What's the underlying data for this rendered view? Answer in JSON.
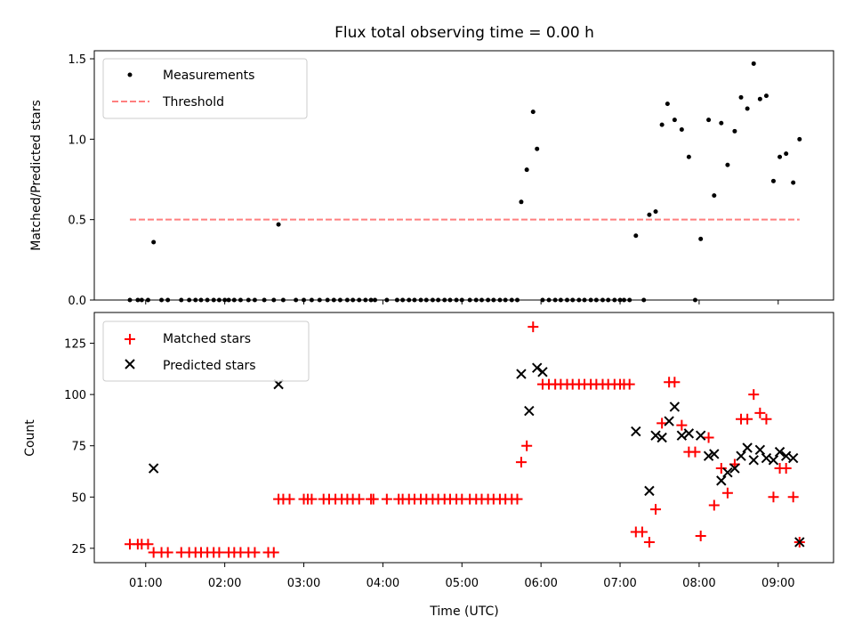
{
  "chart_data": [
    {
      "type": "scatter",
      "title": "Flux total observing time = 0.00 h",
      "xlabel": "",
      "ylabel": "Matched/Predicted stars",
      "xlim": [
        0.35,
        9.7
      ],
      "ylim": [
        0,
        1.55
      ],
      "yticks": [
        0.0,
        0.5,
        1.0,
        1.5
      ],
      "ytick_labels": [
        "0.0",
        "0.5",
        "1.0",
        "1.5"
      ],
      "legend": {
        "placement": "top-left",
        "entries": [
          "Measurements",
          "Threshold"
        ]
      },
      "threshold": {
        "name": "Threshold",
        "y": 0.5,
        "x_range": [
          0.8,
          9.27
        ],
        "color": "#ff7f7f"
      },
      "series": [
        {
          "name": "Measurements",
          "color": "#000000",
          "marker": "dot",
          "x": [
            0.8,
            0.9,
            0.95,
            1.03,
            1.1,
            1.2,
            1.28,
            1.45,
            1.55,
            1.63,
            1.7,
            1.78,
            1.86,
            1.93,
            2.0,
            2.05,
            2.12,
            2.2,
            2.3,
            2.38,
            2.5,
            2.62,
            2.68,
            2.74,
            2.9,
            3.0,
            3.1,
            3.2,
            3.3,
            3.38,
            3.46,
            3.55,
            3.62,
            3.7,
            3.78,
            3.85,
            3.9,
            4.05,
            4.18,
            4.25,
            4.33,
            4.4,
            4.48,
            4.55,
            4.63,
            4.7,
            4.78,
            4.85,
            4.93,
            5.0,
            5.1,
            5.18,
            5.25,
            5.33,
            5.4,
            5.48,
            5.55,
            5.63,
            5.7,
            5.75,
            5.82,
            5.9,
            5.95,
            6.02,
            6.1,
            6.18,
            6.25,
            6.33,
            6.4,
            6.48,
            6.55,
            6.63,
            6.7,
            6.78,
            6.85,
            6.93,
            7.0,
            7.05,
            7.12,
            7.2,
            7.3,
            7.37,
            7.45,
            7.53,
            7.6,
            7.69,
            7.78,
            7.87,
            7.95,
            8.02,
            8.12,
            8.19,
            8.28,
            8.36,
            8.45,
            8.53,
            8.61,
            8.69,
            8.77,
            8.85,
            8.94,
            9.02,
            9.1,
            9.19,
            9.27
          ],
          "y": [
            0,
            0,
            0,
            0,
            0.36,
            0,
            0,
            0,
            0,
            0,
            0,
            0,
            0,
            0,
            0,
            0,
            0,
            0,
            0,
            0,
            0,
            0,
            0.47,
            0,
            0,
            0,
            0,
            0,
            0,
            0,
            0,
            0,
            0,
            0,
            0,
            0,
            0,
            0,
            0,
            0,
            0,
            0,
            0,
            0,
            0,
            0,
            0,
            0,
            0,
            0,
            0,
            0,
            0,
            0,
            0,
            0,
            0,
            0,
            0,
            0.61,
            0.81,
            1.17,
            0.94,
            0,
            0,
            0,
            0,
            0,
            0,
            0,
            0,
            0,
            0,
            0,
            0,
            0,
            0,
            0,
            0,
            0.4,
            0,
            0.53,
            0.55,
            1.09,
            1.22,
            1.12,
            1.06,
            0.89,
            0,
            0.38,
            1.12,
            0.65,
            1.1,
            0.84,
            1.05,
            1.26,
            1.19,
            1.47,
            1.25,
            1.27,
            0.74,
            0.89,
            0.91,
            0.73,
            1.0
          ]
        }
      ]
    },
    {
      "type": "scatter",
      "title": "",
      "xlabel": "Time (UTC)",
      "ylabel": "Count",
      "xlim": [
        0.35,
        9.7
      ],
      "ylim": [
        18,
        140
      ],
      "xticks": [
        1,
        2,
        3,
        4,
        5,
        6,
        7,
        8,
        9
      ],
      "xtick_labels": [
        "01:00",
        "02:00",
        "03:00",
        "04:00",
        "05:00",
        "06:00",
        "07:00",
        "08:00",
        "09:00"
      ],
      "yticks": [
        25,
        50,
        75,
        100,
        125
      ],
      "ytick_labels": [
        "25",
        "50",
        "75",
        "100",
        "125"
      ],
      "legend": {
        "placement": "top-left",
        "entries": [
          "Matched stars",
          "Predicted stars"
        ]
      },
      "series": [
        {
          "name": "Matched stars",
          "color": "#ff0000",
          "marker": "plus",
          "x": [
            0.8,
            0.9,
            0.95,
            1.03,
            1.1,
            1.2,
            1.28,
            1.45,
            1.55,
            1.63,
            1.7,
            1.78,
            1.86,
            1.93,
            2.05,
            2.12,
            2.2,
            2.3,
            2.38,
            2.55,
            2.62,
            2.68,
            2.74,
            2.82,
            3.0,
            3.05,
            3.1,
            3.25,
            3.32,
            3.4,
            3.48,
            3.55,
            3.62,
            3.7,
            3.85,
            3.88,
            4.05,
            4.2,
            4.25,
            4.33,
            4.4,
            4.48,
            4.55,
            4.63,
            4.7,
            4.78,
            4.85,
            4.93,
            5.0,
            5.1,
            5.18,
            5.25,
            5.33,
            5.4,
            5.48,
            5.55,
            5.63,
            5.7,
            5.75,
            5.82,
            5.9,
            6.02,
            6.1,
            6.18,
            6.25,
            6.33,
            6.4,
            6.48,
            6.55,
            6.63,
            6.7,
            6.78,
            6.85,
            6.93,
            7.0,
            7.05,
            7.12,
            7.2,
            7.28,
            7.37,
            7.45,
            7.53,
            7.62,
            7.69,
            7.78,
            7.87,
            7.95,
            8.02,
            8.12,
            8.19,
            8.28,
            8.36,
            8.45,
            8.53,
            8.61,
            8.69,
            8.77,
            8.85,
            8.94,
            9.02,
            9.1,
            9.19,
            9.27
          ],
          "y": [
            27,
            27,
            27,
            27,
            23,
            23,
            23,
            23,
            23,
            23,
            23,
            23,
            23,
            23,
            23,
            23,
            23,
            23,
            23,
            23,
            23,
            49,
            49,
            49,
            49,
            49,
            49,
            49,
            49,
            49,
            49,
            49,
            49,
            49,
            49,
            49,
            49,
            49,
            49,
            49,
            49,
            49,
            49,
            49,
            49,
            49,
            49,
            49,
            49,
            49,
            49,
            49,
            49,
            49,
            49,
            49,
            49,
            49,
            67,
            75,
            133,
            105,
            105,
            105,
            105,
            105,
            105,
            105,
            105,
            105,
            105,
            105,
            105,
            105,
            105,
            105,
            105,
            33,
            33,
            28,
            44,
            86,
            106,
            106,
            85,
            72,
            72,
            31,
            79,
            46,
            64,
            52,
            66,
            88,
            88,
            100,
            91,
            88,
            50,
            64,
            64,
            50,
            28
          ]
        },
        {
          "name": "Predicted stars",
          "color": "#000000",
          "marker": "x",
          "x": [
            1.1,
            2.68,
            5.75,
            5.85,
            5.95,
            6.02,
            7.2,
            7.37,
            7.45,
            7.53,
            7.62,
            7.69,
            7.78,
            7.87,
            8.02,
            8.12,
            8.19,
            8.28,
            8.36,
            8.45,
            8.53,
            8.61,
            8.69,
            8.77,
            8.85,
            8.94,
            9.02,
            9.1,
            9.19,
            9.27
          ],
          "y": [
            64,
            105,
            110,
            92,
            113,
            111,
            82,
            53,
            80,
            79,
            87,
            94,
            80,
            81,
            80,
            70,
            71,
            58,
            62,
            64,
            70,
            74,
            68,
            73,
            69,
            68,
            72,
            70,
            69,
            28
          ]
        }
      ]
    }
  ]
}
